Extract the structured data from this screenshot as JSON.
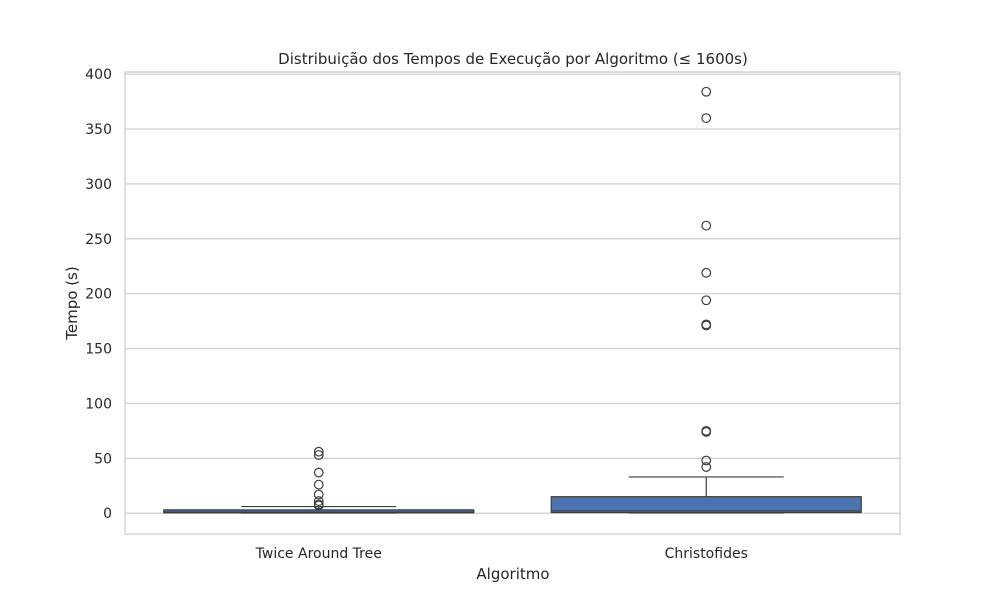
{
  "chart_data": {
    "type": "box",
    "title": "Distribuição dos Tempos de Execução por Algoritmo (≤ 1600s)",
    "xlabel": "Algoritmo",
    "ylabel": "Tempo (s)",
    "ylim": [
      -19,
      402
    ],
    "yticks": [
      0,
      50,
      100,
      150,
      200,
      250,
      300,
      350,
      400
    ],
    "grid": "horizontal",
    "colors": {
      "box": "#4c72b0",
      "edge": "#3d3d3d",
      "grid": "#cccccc",
      "spine": "#cccccc"
    },
    "categories": [
      "Twice Around Tree",
      "Christofides"
    ],
    "boxes": [
      {
        "name": "Twice Around Tree",
        "whisker_low": 0.1,
        "q1": 0.3,
        "median": 1.0,
        "q3": 3.0,
        "whisker_high": 6.0,
        "outliers": [
          7,
          8,
          11,
          17,
          26,
          37,
          53,
          56
        ]
      },
      {
        "name": "Christofides",
        "whisker_low": 0.2,
        "q1": 0.5,
        "median": 2.0,
        "q3": 15.0,
        "whisker_high": 33.0,
        "outliers": [
          42,
          48,
          74,
          75,
          171,
          172,
          194,
          219,
          262,
          360,
          384
        ]
      }
    ]
  }
}
